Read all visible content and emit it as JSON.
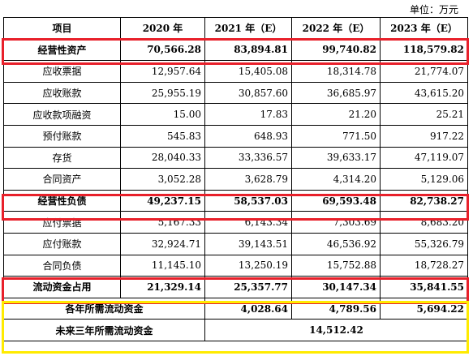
{
  "unit": "单位：万元",
  "headers": [
    "项目",
    "2020 年",
    "2021 年（E）",
    "2022 年（E）",
    "2023 年（E）"
  ],
  "rows": [
    {
      "label": "经营性资产",
      "values": [
        "70,566.28",
        "83,894.81",
        "99,740.82",
        "118,579.82"
      ],
      "bold": true
    },
    {
      "label": "应收票据",
      "values": [
        "12,957.64",
        "15,405.08",
        "18,314.78",
        "21,774.07"
      ],
      "bold": false
    },
    {
      "label": "应收账款",
      "values": [
        "25,955.19",
        "30,857.60",
        "36,685.97",
        "43,615.20"
      ],
      "bold": false
    },
    {
      "label": "应收款项融资",
      "values": [
        "15.00",
        "17.83",
        "21.20",
        "25.21"
      ],
      "bold": false
    },
    {
      "label": "预付账款",
      "values": [
        "545.83",
        "648.93",
        "771.50",
        "917.22"
      ],
      "bold": false
    },
    {
      "label": "存货",
      "values": [
        "28,040.33",
        "33,336.57",
        "39,633.17",
        "47,119.07"
      ],
      "bold": false
    },
    {
      "label": "合同资产",
      "values": [
        "3,052.28",
        "3,628.79",
        "4,314.20",
        "5,129.06"
      ],
      "bold": false
    },
    {
      "label": "经营性负债",
      "values": [
        "49,237.15",
        "58,537.03",
        "69,593.48",
        "82,738.27"
      ],
      "bold": true
    },
    {
      "label": "应付票据",
      "values": [
        "5,167.33",
        "6,143.34",
        "7,303.69",
        "8,683.20"
      ],
      "bold": false
    },
    {
      "label": "应付账款",
      "values": [
        "32,924.71",
        "39,143.51",
        "46,536.92",
        "55,326.79"
      ],
      "bold": false
    },
    {
      "label": "合同负债",
      "values": [
        "11,145.10",
        "13,250.19",
        "15,752.88",
        "18,728.27"
      ],
      "bold": false
    },
    {
      "label": "流动资金占用",
      "values": [
        "21,329.14",
        "25,357.77",
        "30,147.34",
        "35,841.55"
      ],
      "bold": true
    }
  ],
  "annual_need": {
    "label": "各年所需流动资金",
    "values": [
      "4,028.64",
      "4,789.56",
      "5,694.22"
    ]
  },
  "three_year": {
    "label": "未来三年所需流动资金",
    "value": "14,512.42"
  },
  "colors": {
    "highlight_red": "#e8202a",
    "highlight_yellow": "#ffeb00"
  }
}
